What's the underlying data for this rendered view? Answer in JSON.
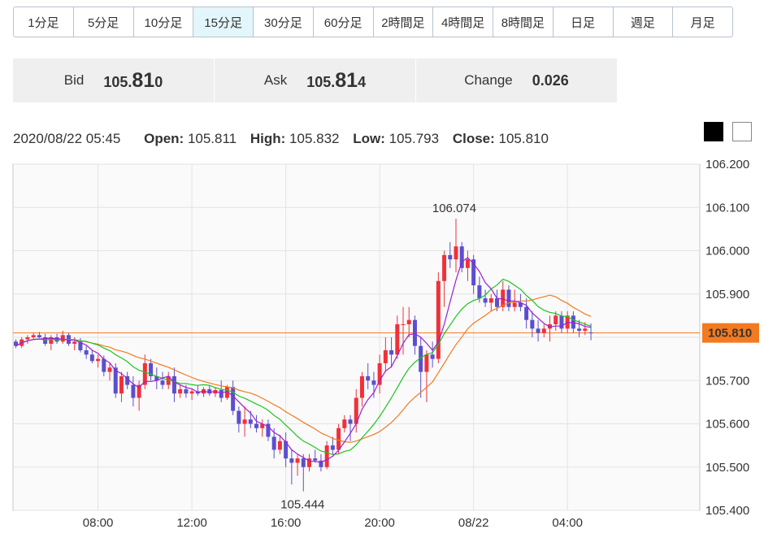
{
  "timeframes": [
    {
      "label": "1分足",
      "active": false
    },
    {
      "label": "5分足",
      "active": false
    },
    {
      "label": "10分足",
      "active": false
    },
    {
      "label": "15分足",
      "active": true
    },
    {
      "label": "30分足",
      "active": false
    },
    {
      "label": "60分足",
      "active": false
    },
    {
      "label": "2時間足",
      "active": false
    },
    {
      "label": "4時間足",
      "active": false
    },
    {
      "label": "8時間足",
      "active": false
    },
    {
      "label": "日足",
      "active": false
    },
    {
      "label": "週足",
      "active": false
    },
    {
      "label": "月足",
      "active": false
    }
  ],
  "quote": {
    "bid_label": "Bid",
    "bid_prefix": "105.",
    "bid_big": "81",
    "bid_small": "0",
    "ask_label": "Ask",
    "ask_prefix": "105.",
    "ask_big": "81",
    "ask_small": "4",
    "change_label": "Change",
    "change_value": "0.026"
  },
  "ohlc": {
    "datetime": "2020/08/22 05:45",
    "open_label": "Open:",
    "open": "105.811",
    "high_label": "High:",
    "high": "105.832",
    "low_label": "Low:",
    "low": "105.793",
    "close_label": "Close:",
    "close": "105.810"
  },
  "colors": {
    "up": "#f0313a",
    "down": "#5b4fcf",
    "ma_short": "#9b1fd6",
    "ma_mid": "#1ec41e",
    "ma_long": "#f47a1f",
    "current_price": "#f47a1f",
    "high_label": "#e8416d",
    "low_label": "#3d62c9",
    "theme_dark": "#000000",
    "theme_light": "#ffffff"
  },
  "chart_data": {
    "type": "candlestick",
    "ylim": [
      105.4,
      106.2
    ],
    "y_ticks": [
      "106.200",
      "106.100",
      "106.000",
      "105.900",
      "105.800",
      "105.700",
      "105.600",
      "105.500",
      "105.400"
    ],
    "x_ticks": [
      {
        "label": "08:00",
        "index": 14
      },
      {
        "label": "12:00",
        "index": 30
      },
      {
        "label": "16:00",
        "index": 46
      },
      {
        "label": "20:00",
        "index": 62
      },
      {
        "label": "08/22",
        "index": 78
      },
      {
        "label": "04:00",
        "index": 94
      }
    ],
    "current_price": "105.810",
    "high_marker": {
      "label": "106.074",
      "index": 75,
      "value": 106.074
    },
    "low_marker": {
      "label": "105.444",
      "index": 49,
      "value": 105.444
    },
    "candles": [
      [
        105.79,
        105.795,
        105.775,
        105.78
      ],
      [
        105.78,
        105.8,
        105.775,
        105.795
      ],
      [
        105.795,
        105.805,
        105.785,
        105.8
      ],
      [
        105.8,
        105.81,
        105.795,
        105.805
      ],
      [
        105.805,
        105.812,
        105.798,
        105.8
      ],
      [
        105.8,
        105.808,
        105.78,
        105.785
      ],
      [
        105.785,
        105.805,
        105.77,
        105.8
      ],
      [
        105.8,
        105.808,
        105.785,
        105.79
      ],
      [
        105.79,
        105.815,
        105.785,
        105.805
      ],
      [
        105.805,
        105.81,
        105.78,
        105.785
      ],
      [
        105.785,
        105.8,
        105.77,
        105.79
      ],
      [
        105.79,
        105.798,
        105.765,
        105.77
      ],
      [
        105.77,
        105.78,
        105.75,
        105.76
      ],
      [
        105.76,
        105.77,
        105.74,
        105.745
      ],
      [
        105.745,
        105.76,
        105.73,
        105.75
      ],
      [
        105.75,
        105.758,
        105.71,
        105.72
      ],
      [
        105.72,
        105.74,
        105.7,
        105.73
      ],
      [
        105.73,
        105.74,
        105.66,
        105.67
      ],
      [
        105.67,
        105.72,
        105.65,
        105.71
      ],
      [
        105.71,
        105.72,
        105.68,
        105.69
      ],
      [
        105.69,
        105.71,
        105.64,
        105.66
      ],
      [
        105.66,
        105.7,
        105.63,
        105.69
      ],
      [
        105.69,
        105.76,
        105.68,
        105.74
      ],
      [
        105.74,
        105.75,
        105.7,
        105.71
      ],
      [
        105.71,
        105.73,
        105.68,
        105.7
      ],
      [
        105.7,
        105.72,
        105.68,
        105.69
      ],
      [
        105.69,
        105.72,
        105.68,
        105.71
      ],
      [
        105.71,
        105.73,
        105.65,
        105.67
      ],
      [
        105.67,
        105.69,
        105.66,
        105.68
      ],
      [
        105.68,
        105.69,
        105.66,
        105.67
      ],
      [
        105.67,
        105.68,
        105.655,
        105.675
      ],
      [
        105.675,
        105.69,
        105.665,
        105.67
      ],
      [
        105.67,
        105.685,
        105.662,
        105.68
      ],
      [
        105.68,
        105.69,
        105.665,
        105.67
      ],
      [
        105.67,
        105.685,
        105.662,
        105.678
      ],
      [
        105.678,
        105.7,
        105.65,
        105.66
      ],
      [
        105.66,
        105.69,
        105.655,
        105.685
      ],
      [
        105.685,
        105.7,
        105.62,
        105.63
      ],
      [
        105.63,
        105.64,
        105.58,
        105.6
      ],
      [
        105.6,
        105.64,
        105.57,
        105.61
      ],
      [
        105.61,
        105.63,
        105.59,
        105.6
      ],
      [
        105.6,
        105.62,
        105.58,
        105.59
      ],
      [
        105.59,
        105.61,
        105.57,
        105.6
      ],
      [
        105.6,
        105.61,
        105.56,
        105.57
      ],
      [
        105.57,
        105.59,
        105.52,
        105.54
      ],
      [
        105.54,
        105.575,
        105.53,
        105.56
      ],
      [
        105.56,
        105.58,
        105.5,
        105.52
      ],
      [
        105.52,
        105.54,
        105.46,
        105.51
      ],
      [
        105.51,
        105.53,
        105.48,
        105.52
      ],
      [
        105.52,
        105.53,
        105.444,
        105.5
      ],
      [
        105.5,
        105.53,
        105.49,
        105.52
      ],
      [
        105.52,
        105.54,
        105.51,
        105.515
      ],
      [
        105.515,
        105.53,
        105.49,
        105.5
      ],
      [
        105.5,
        105.56,
        105.495,
        105.55
      ],
      [
        105.55,
        105.57,
        105.53,
        105.54
      ],
      [
        105.54,
        105.6,
        105.53,
        105.59
      ],
      [
        105.59,
        105.62,
        105.58,
        105.61
      ],
      [
        105.61,
        105.62,
        105.56,
        105.6
      ],
      [
        105.6,
        105.68,
        105.58,
        105.66
      ],
      [
        105.66,
        105.72,
        105.64,
        105.71
      ],
      [
        105.71,
        105.74,
        105.68,
        105.7
      ],
      [
        105.7,
        105.72,
        105.66,
        105.69
      ],
      [
        105.69,
        105.76,
        105.67,
        105.74
      ],
      [
        105.74,
        105.8,
        105.72,
        105.77
      ],
      [
        105.77,
        105.8,
        105.73,
        105.76
      ],
      [
        105.76,
        105.85,
        105.75,
        105.83
      ],
      [
        105.83,
        105.87,
        105.76,
        105.83
      ],
      [
        105.83,
        105.87,
        105.8,
        105.84
      ],
      [
        105.84,
        105.85,
        105.76,
        105.78
      ],
      [
        105.78,
        105.8,
        105.66,
        105.72
      ],
      [
        105.72,
        105.77,
        105.65,
        105.76
      ],
      [
        105.76,
        105.79,
        105.73,
        105.75
      ],
      [
        105.75,
        105.95,
        105.74,
        105.93
      ],
      [
        105.93,
        106.0,
        105.87,
        105.99
      ],
      [
        105.99,
        106.02,
        105.96,
        105.98
      ],
      [
        105.98,
        106.074,
        105.95,
        106.01
      ],
      [
        106.01,
        106.02,
        105.95,
        105.96
      ],
      [
        105.96,
        106.0,
        105.93,
        105.98
      ],
      [
        105.98,
        105.99,
        105.9,
        105.92
      ],
      [
        105.92,
        105.94,
        105.88,
        105.89
      ],
      [
        105.89,
        105.91,
        105.87,
        105.88
      ],
      [
        105.88,
        105.9,
        105.86,
        105.89
      ],
      [
        105.89,
        105.91,
        105.86,
        105.87
      ],
      [
        105.87,
        105.93,
        105.86,
        105.91
      ],
      [
        105.91,
        105.92,
        105.86,
        105.87
      ],
      [
        105.87,
        105.91,
        105.86,
        105.88
      ],
      [
        105.88,
        105.9,
        105.86,
        105.87
      ],
      [
        105.87,
        105.89,
        105.82,
        105.84
      ],
      [
        105.84,
        105.86,
        105.8,
        105.82
      ],
      [
        105.82,
        105.84,
        105.79,
        105.81
      ],
      [
        105.81,
        105.83,
        105.8,
        105.82
      ],
      [
        105.82,
        105.85,
        105.79,
        105.83
      ],
      [
        105.83,
        105.86,
        105.815,
        105.85
      ],
      [
        105.85,
        105.86,
        105.81,
        105.82
      ],
      [
        105.82,
        105.86,
        105.81,
        105.85
      ],
      [
        105.85,
        105.86,
        105.81,
        105.82
      ],
      [
        105.82,
        105.84,
        105.8,
        105.815
      ],
      [
        105.815,
        105.835,
        105.805,
        105.82
      ],
      [
        105.811,
        105.832,
        105.793,
        105.81
      ]
    ]
  }
}
